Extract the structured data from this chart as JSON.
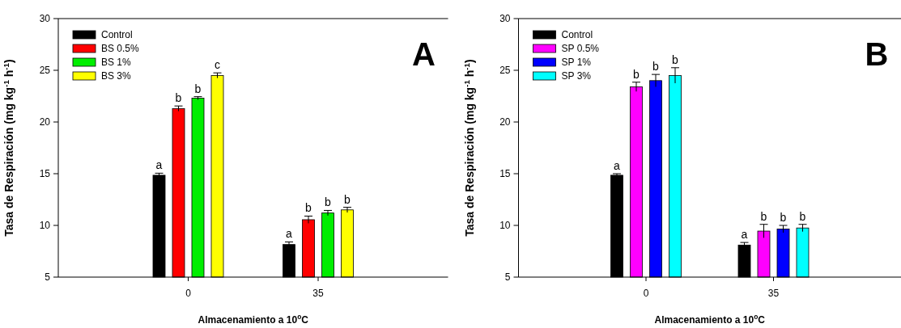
{
  "chart_data": [
    {
      "type": "bar",
      "categories": [
        "0",
        "35"
      ],
      "xlabel": "Almacenamiento a 10$^{o}$C",
      "ylabel": "Tasa de Respiración (mg kg$^{-1}$ h$^{-1}$)",
      "ylim": [
        5,
        30
      ],
      "yticks": [
        5,
        10,
        15,
        20,
        25,
        30
      ],
      "legend": "top left",
      "grid": false,
      "series": [
        {
          "name": "Control",
          "color": "#000000",
          "values": [
            14.85,
            8.15
          ],
          "errors": [
            0.2,
            0.25
          ]
        },
        {
          "name": "BS 0.5%",
          "color": "#ff0000",
          "values": [
            21.3,
            10.55
          ],
          "errors": [
            0.25,
            0.35
          ]
        },
        {
          "name": "BS 1%",
          "color": "#00ee00",
          "values": [
            22.3,
            11.2
          ],
          "errors": [
            0.15,
            0.25
          ]
        },
        {
          "name": "BS 3%",
          "color": "#ffff00",
          "values": [
            24.5,
            11.5
          ],
          "errors": [
            0.25,
            0.25
          ]
        }
      ],
      "annotations": [
        "A",
        "a",
        "b",
        "b",
        "c",
        "a",
        "b",
        "b",
        "b"
      ]
    },
    {
      "type": "bar",
      "categories": [
        "0",
        "35"
      ],
      "xlabel": "Almacenamiento a 10$^{o}$C",
      "ylabel": "Tasa de Respiración (mg kg$^{-1}$ h$^{-1}$)",
      "ylim": [
        5,
        30
      ],
      "yticks": [
        5,
        10,
        15,
        20,
        25,
        30
      ],
      "legend": "top left",
      "grid": false,
      "series": [
        {
          "name": "Control",
          "color": "#000000",
          "values": [
            14.85,
            8.1
          ],
          "errors": [
            0.15,
            0.25
          ]
        },
        {
          "name": "SP 0.5%",
          "color": "#ff00ff",
          "values": [
            23.4,
            9.45
          ],
          "errors": [
            0.45,
            0.65
          ]
        },
        {
          "name": "SP 1%",
          "color": "#0000ff",
          "values": [
            24.0,
            9.65
          ],
          "errors": [
            0.6,
            0.35
          ]
        },
        {
          "name": "SP 3%",
          "color": "#00ffff",
          "values": [
            24.5,
            9.75
          ],
          "errors": [
            0.75,
            0.35
          ]
        }
      ],
      "annotations": [
        "B",
        "a",
        "b",
        "b",
        "b",
        "a",
        "b",
        "b",
        "b"
      ]
    }
  ]
}
